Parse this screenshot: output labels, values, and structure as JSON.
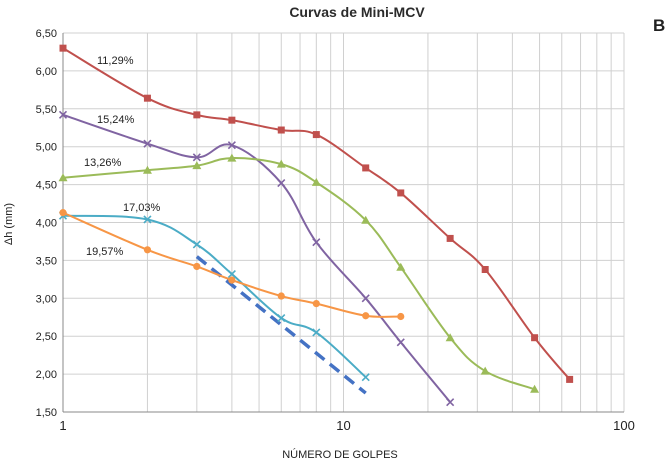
{
  "chart_data": {
    "type": "line",
    "title": "Curvas de Mini-MCV",
    "panel_label": "B",
    "xlabel": "NÚMERO DE GOLPES",
    "ylabel": "Δh (mm)",
    "xscale": "log",
    "xlim": [
      1,
      100
    ],
    "ylim": [
      1.5,
      6.5
    ],
    "x_ticks": [
      1,
      10,
      100
    ],
    "x_tick_labels": [
      "1",
      "10",
      "100"
    ],
    "y_ticks": [
      1.5,
      2.0,
      2.5,
      3.0,
      3.5,
      4.0,
      4.5,
      5.0,
      5.5,
      6.0,
      6.5
    ],
    "y_tick_labels": [
      "1,50",
      "2,00",
      "2,50",
      "3,00",
      "3,50",
      "4,00",
      "4,50",
      "5,00",
      "5,50",
      "6,00",
      "6,50"
    ],
    "grid": true,
    "series": [
      {
        "name": "11,29%",
        "color": "#c0504d",
        "marker": "square",
        "x": [
          1,
          2,
          3,
          4,
          6,
          8,
          12,
          16,
          24,
          32,
          48,
          64
        ],
        "y": [
          6.3,
          5.64,
          5.42,
          5.35,
          5.22,
          5.16,
          4.72,
          4.39,
          3.79,
          3.38,
          2.48,
          1.93
        ]
      },
      {
        "name": "15,24%",
        "color": "#8064a2",
        "marker": "x",
        "x": [
          1,
          2,
          3,
          4,
          6,
          8,
          12,
          16,
          24
        ],
        "y": [
          5.42,
          5.04,
          4.86,
          5.02,
          4.52,
          3.74,
          3.0,
          2.42,
          1.63
        ]
      },
      {
        "name": "13,26%",
        "color": "#9bbb59",
        "marker": "triangle",
        "x": [
          1,
          2,
          3,
          4,
          6,
          8,
          12,
          16,
          24,
          32,
          48
        ],
        "y": [
          4.59,
          4.69,
          4.75,
          4.85,
          4.77,
          4.53,
          4.03,
          3.41,
          2.48,
          2.04,
          1.8
        ]
      },
      {
        "name": "17,03%",
        "color": "#4bacc6",
        "marker": "x",
        "x": [
          1,
          2,
          3,
          4,
          6,
          8,
          12
        ],
        "y": [
          4.09,
          4.04,
          3.71,
          3.32,
          2.74,
          2.55,
          1.96
        ]
      },
      {
        "name": "19,57%",
        "color": "#f79646",
        "marker": "circle",
        "x": [
          1,
          2,
          3,
          4,
          6,
          8,
          12,
          16
        ],
        "y": [
          4.13,
          3.64,
          3.42,
          3.24,
          3.03,
          2.93,
          2.77,
          2.76
        ]
      }
    ],
    "reference_line": {
      "style": "dashed",
      "color": "#4472c4",
      "x": [
        3,
        12
      ],
      "y": [
        3.55,
        1.75
      ]
    },
    "annotations": [
      {
        "text": "11,29%",
        "series": 0
      },
      {
        "text": "15,24%",
        "series": 1
      },
      {
        "text": "13,26%",
        "series": 2
      },
      {
        "text": "17,03%",
        "series": 3
      },
      {
        "text": "19,57%",
        "series": 4
      }
    ]
  }
}
